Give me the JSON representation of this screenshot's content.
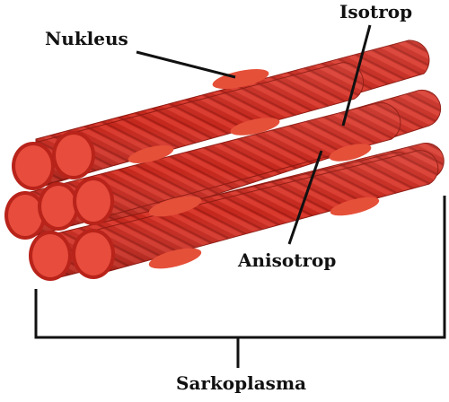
{
  "labels": {
    "nucleus": "Nukleus",
    "isotrop": "Isotrop",
    "anisotrop": "Anisotrop",
    "sarcoplasm": "Sarkoplasma"
  },
  "colors": {
    "fiber_dark": "#a01c14",
    "fiber_mid": "#c5281d",
    "fiber_band": "#d5352a",
    "fiber_light": "#e8493a",
    "end_cap": "#e74c3c",
    "end_rim": "#c1261c",
    "nucleus": "#e55039",
    "ink": "#111111"
  }
}
